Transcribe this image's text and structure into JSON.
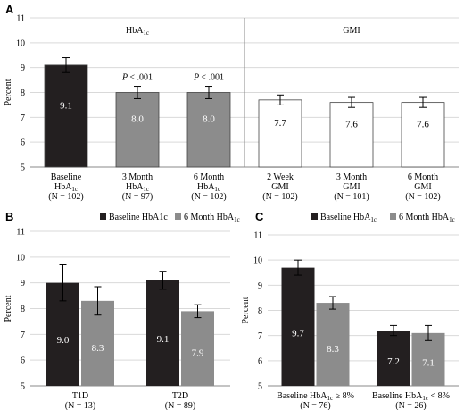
{
  "chart_data": [
    {
      "panel": "A",
      "type": "bar",
      "ylabel": "Percent",
      "ylim": [
        5,
        11
      ],
      "ticks": [
        "5",
        "6",
        "7",
        "8",
        "9",
        "10",
        "11"
      ],
      "group_labels": [
        {
          "main": "HbA",
          "sub": "1c"
        },
        {
          "main": "GMI",
          "sub": ""
        }
      ],
      "bars": [
        {
          "label": [
            "Baseline",
            "HbA1c",
            "(N = 102)"
          ],
          "value": 9.1,
          "err": 0.3,
          "display": "9.1",
          "fill": "#231f20",
          "text_color": "#ffffff",
          "annotation": ""
        },
        {
          "label": [
            "3 Month",
            "HbA1c",
            "(N = 97)"
          ],
          "value": 8.0,
          "err": 0.25,
          "display": "8.0",
          "fill": "#8c8c8c",
          "text_color": "#ffffff",
          "annotation": "< .001"
        },
        {
          "label": [
            "6 Month",
            "HbA1c",
            "(N = 102)"
          ],
          "value": 8.0,
          "err": 0.25,
          "display": "8.0",
          "fill": "#8c8c8c",
          "text_color": "#ffffff",
          "annotation": "< .001"
        },
        {
          "label": [
            "2 Week",
            "GMI",
            "(N = 102)"
          ],
          "value": 7.7,
          "err": 0.2,
          "display": "7.7",
          "fill": "#ffffff",
          "text_color": "#000000",
          "annotation": ""
        },
        {
          "label": [
            "3 Month",
            "GMI",
            "(N = 101)"
          ],
          "value": 7.6,
          "err": 0.2,
          "display": "7.6",
          "fill": "#ffffff",
          "text_color": "#000000",
          "annotation": ""
        },
        {
          "label": [
            "6 Month",
            "GMI",
            "(N = 102)"
          ],
          "value": 7.6,
          "err": 0.2,
          "display": "7.6",
          "fill": "#ffffff",
          "text_color": "#000000",
          "annotation": ""
        }
      ]
    },
    {
      "panel": "B",
      "type": "bar",
      "ylabel": "Percent",
      "ylim": [
        5,
        11
      ],
      "ticks": [
        "5",
        "6",
        "7",
        "8",
        "9",
        "10",
        "11"
      ],
      "legend": [
        {
          "name": "Baseline HbA1c",
          "sub": "",
          "color": "#231f20"
        },
        {
          "name": "6 Month HbA",
          "sub": "1c",
          "color": "#8c8c8c"
        }
      ],
      "categories": [
        {
          "label": [
            "T1D",
            "(N = 13)"
          ]
        },
        {
          "label": [
            "T2D",
            "(N = 89)"
          ]
        }
      ],
      "series": [
        {
          "values": [
            9.0,
            9.1
          ],
          "err": [
            0.7,
            0.35
          ],
          "display": [
            "9.0",
            "9.1"
          ],
          "fill": "#231f20"
        },
        {
          "values": [
            8.3,
            7.9
          ],
          "err": [
            0.55,
            0.25
          ],
          "display": [
            "8.3",
            "7.9"
          ],
          "fill": "#8c8c8c"
        }
      ]
    },
    {
      "panel": "C",
      "type": "bar",
      "ylabel": "Percent",
      "ylim": [
        5,
        11
      ],
      "ticks": [
        "5",
        "6",
        "7",
        "8",
        "9",
        "10",
        "11"
      ],
      "legend": [
        {
          "name": "Baseline HbA",
          "sub": "1c",
          "color": "#231f20"
        },
        {
          "name": "6 Month HbA",
          "sub": "1c",
          "color": "#8c8c8c"
        }
      ],
      "categories": [
        {
          "label": [
            "Baseline HbA1c ≥ 8%",
            "(N = 76)"
          ]
        },
        {
          "label": [
            "Baseline HbA1c < 8%",
            "(N = 26)"
          ]
        }
      ],
      "series": [
        {
          "values": [
            9.7,
            7.2
          ],
          "err": [
            0.3,
            0.2
          ],
          "display": [
            "9.7",
            "7.2"
          ],
          "fill": "#231f20"
        },
        {
          "values": [
            8.3,
            7.1
          ],
          "err": [
            0.25,
            0.3
          ],
          "display": [
            "8.3",
            "7.1"
          ],
          "fill": "#8c8c8c"
        }
      ]
    }
  ],
  "pvalue_prefix": "P"
}
